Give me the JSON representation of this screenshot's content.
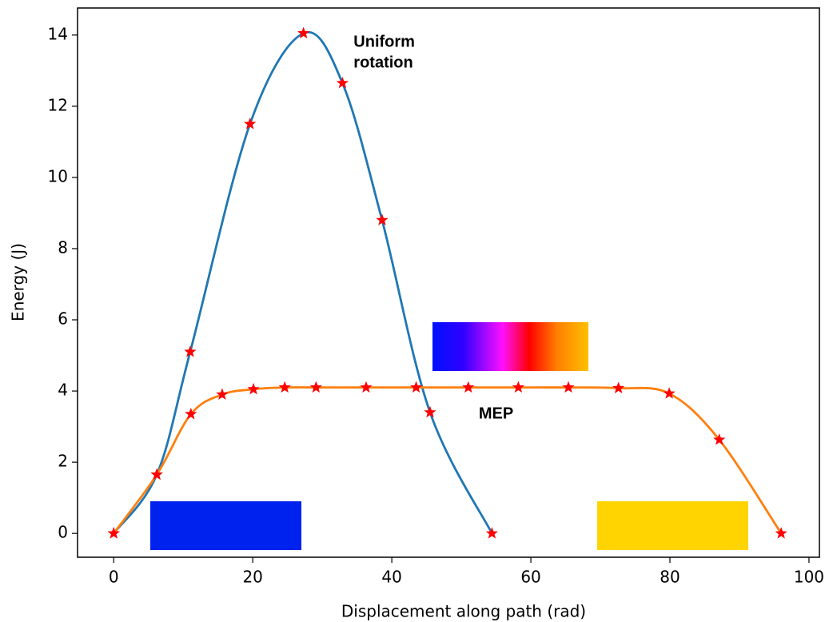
{
  "chart_data": {
    "type": "line",
    "xlabel": "Displacement along path (rad)",
    "ylabel": "Energy (J)",
    "xlim": [
      -5.2,
      101.5
    ],
    "ylim": [
      -0.67,
      14.76
    ],
    "xticks": [
      0,
      20,
      40,
      60,
      80,
      100
    ],
    "yticks": [
      0,
      2,
      4,
      6,
      8,
      10,
      12,
      14
    ],
    "marker": "star",
    "marker_color": "#ff0000",
    "series": [
      {
        "name": "Uniform rotation",
        "color": "#1f77b4",
        "x": [
          0,
          6.2,
          11,
          19.6,
          27.3,
          32.9,
          38.6,
          45.5,
          54.4
        ],
        "values": [
          0,
          1.65,
          5.1,
          11.5,
          14.05,
          12.65,
          8.8,
          3.4,
          0
        ]
      },
      {
        "name": "MEP",
        "color": "#ff7f0e",
        "x": [
          0,
          6.2,
          11.1,
          15.6,
          20.1,
          24.6,
          29.1,
          36.3,
          43.5,
          51,
          58.2,
          65.4,
          72.6,
          79.9,
          87.1,
          96
        ],
        "values": [
          0,
          1.65,
          3.35,
          3.9,
          4.05,
          4.1,
          4.1,
          4.1,
          4.1,
          4.1,
          4.1,
          4.1,
          4.08,
          3.93,
          2.63,
          0
        ]
      }
    ],
    "annotations": [
      {
        "lines": [
          "Uniform",
          "rotation"
        ],
        "x": 34.5,
        "y": 13.5
      },
      {
        "lines": [
          "MEP"
        ],
        "x": 52.5,
        "y": 3.35
      }
    ]
  }
}
